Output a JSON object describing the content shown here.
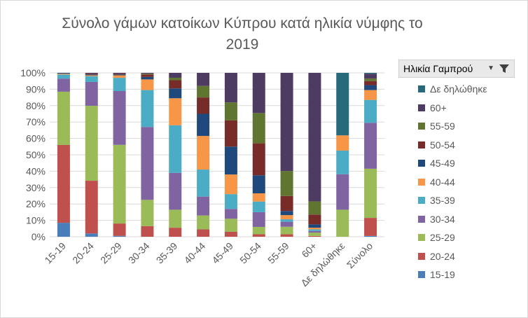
{
  "chart_data": {
    "type": "bar",
    "stacked": "percent",
    "title": "Σύνολο γάμων κατοίκων Κύπρου κατά ηλικία νύμφης το 2019",
    "title_lines": [
      "Σύνολο γάμων κατοίκων Κύπρου κατά ηλικία νύμφης το",
      "2019"
    ],
    "categories": [
      "15-19",
      "20-24",
      "25-29",
      "30-34",
      "35-39",
      "40-44",
      "45-49",
      "50-54",
      "55-59",
      "60+",
      "Δε δηλώθηκε",
      "Σύνολο"
    ],
    "ylim": [
      0,
      100
    ],
    "yticks": [
      "0%",
      "10%",
      "20%",
      "30%",
      "40%",
      "50%",
      "60%",
      "70%",
      "80%",
      "90%",
      "100%"
    ],
    "grid": true,
    "legend_title": "Ηλικία Γαμπρού",
    "legend_position": "right",
    "series": [
      {
        "name": "15-19",
        "color": "#4a7ebb",
        "values": [
          8.5,
          2,
          0.5,
          0,
          0,
          0,
          0,
          0,
          0,
          0,
          0,
          0.5
        ]
      },
      {
        "name": "20-24",
        "color": "#c0504d",
        "values": [
          47.5,
          32,
          7.5,
          6.5,
          5.5,
          4.5,
          3,
          1.5,
          1.5,
          0.5,
          0,
          11
        ]
      },
      {
        "name": "25-29",
        "color": "#9bbb59",
        "values": [
          32.5,
          45.5,
          47.5,
          16,
          11,
          8.5,
          8,
          4.5,
          4.5,
          2,
          16,
          30
        ]
      },
      {
        "name": "30-34",
        "color": "#8064a2",
        "values": [
          8,
          14.5,
          32.5,
          44.5,
          22.5,
          11.5,
          6,
          9,
          3,
          1,
          21,
          28
        ]
      },
      {
        "name": "35-39",
        "color": "#4bacc6",
        "values": [
          2.5,
          3.5,
          8,
          22.5,
          29,
          16.5,
          9,
          6.5,
          1.5,
          1,
          14,
          14
        ]
      },
      {
        "name": "40-44",
        "color": "#f79646",
        "values": [
          0.5,
          0.5,
          1.5,
          6.5,
          16.5,
          20.5,
          12,
          5,
          2.5,
          1,
          9,
          6
        ]
      },
      {
        "name": "45-49",
        "color": "#1f497d",
        "values": [
          0.5,
          0.5,
          0.5,
          1.5,
          6,
          13.5,
          17,
          11,
          2.5,
          2,
          0,
          3
        ]
      },
      {
        "name": "50-54",
        "color": "#772c2a",
        "values": [
          0,
          0.5,
          0.5,
          1.5,
          5,
          10,
          16,
          19.5,
          9,
          6,
          0,
          2.5
        ]
      },
      {
        "name": "55-59",
        "color": "#5f7530",
        "values": [
          0,
          0,
          0,
          0.5,
          1.5,
          7,
          11,
          18.5,
          15,
          8,
          0,
          1.5
        ]
      },
      {
        "name": "60+",
        "color": "#4d3b62",
        "values": [
          0,
          0.5,
          0.5,
          0.5,
          3,
          8,
          18,
          24.5,
          59,
          78,
          0,
          3
        ]
      },
      {
        "name": "Δε δηλώθηκε",
        "color": "#276a7c",
        "values": [
          0,
          0,
          0,
          0,
          0,
          0,
          0,
          0,
          0,
          0,
          37,
          0.5
        ]
      }
    ]
  },
  "colors": {
    "gridline": "#d9d9d9",
    "axis_text": "#595959",
    "title_text": "#595959",
    "legend_header_bg": "#e9e9e9"
  },
  "icons": {
    "legend_filter": "filter-icon",
    "legend_dropdown": "chevron-down-icon"
  }
}
